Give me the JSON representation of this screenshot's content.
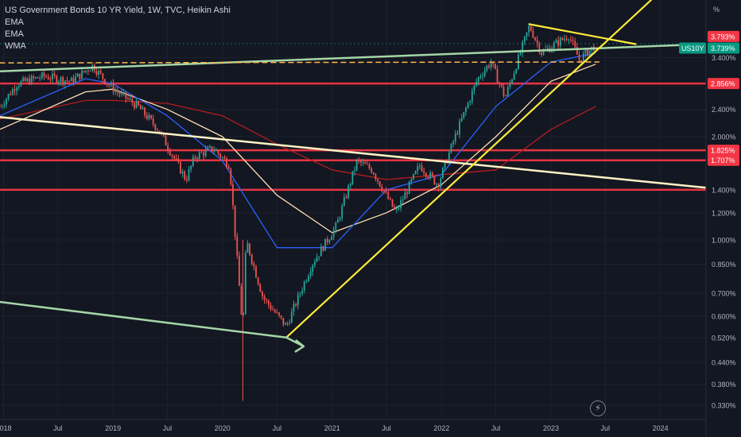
{
  "legend": {
    "title": "US Government Bonds 10 YR Yield, 1W, TVC, Heikin Ashi",
    "line1": "EMA",
    "line2": "EMA",
    "line3": "WMA"
  },
  "icons": {
    "flash": "lightning-icon"
  },
  "chart_data": {
    "type": "candlestick",
    "scale": "log",
    "unit_label": "%",
    "ylim": [
      0.3,
      5.0
    ],
    "xlim": [
      "2017-12-20",
      "2024-06-01"
    ],
    "y_ticks": [
      "3.400%",
      "2.400%",
      "2.000%",
      "1.400%",
      "1.200%",
      "1.000%",
      "0.850%",
      "0.700%",
      "0.600%",
      "0.520%",
      "0.440%",
      "0.380%",
      "0.330%"
    ],
    "y_tick_values": [
      3.4,
      2.4,
      2.0,
      1.4,
      1.2,
      1.0,
      0.85,
      0.7,
      0.6,
      0.52,
      0.44,
      0.38,
      0.33
    ],
    "x_ticks": [
      {
        "label": "2018",
        "date": "2018-01-01"
      },
      {
        "label": "Jul",
        "date": "2018-07-01"
      },
      {
        "label": "2019",
        "date": "2019-01-01"
      },
      {
        "label": "Jul",
        "date": "2019-07-01"
      },
      {
        "label": "2020",
        "date": "2020-01-01"
      },
      {
        "label": "Jul",
        "date": "2020-07-01"
      },
      {
        "label": "2021",
        "date": "2021-01-01"
      },
      {
        "label": "Jul",
        "date": "2021-07-01"
      },
      {
        "label": "2022",
        "date": "2022-01-01"
      },
      {
        "label": "Jul",
        "date": "2022-07-01"
      },
      {
        "label": "2023",
        "date": "2023-01-01"
      },
      {
        "label": "Jul",
        "date": "2023-07-01"
      },
      {
        "label": "2024",
        "date": "2024-01-01"
      }
    ],
    "price_path": [
      [
        "2017-12-20",
        2.45
      ],
      [
        "2018-02-15",
        2.85
      ],
      [
        "2018-05-15",
        3.0
      ],
      [
        "2018-08-15",
        2.9
      ],
      [
        "2018-10-25",
        3.22
      ],
      [
        "2018-12-15",
        2.85
      ],
      [
        "2019-01-15",
        2.7
      ],
      [
        "2019-03-25",
        2.45
      ],
      [
        "2019-06-01",
        2.1
      ],
      [
        "2019-09-01",
        1.5
      ],
      [
        "2019-10-01",
        1.75
      ],
      [
        "2019-12-01",
        1.85
      ],
      [
        "2020-01-25",
        1.65
      ],
      [
        "2020-03-09",
        0.54
      ],
      [
        "2020-03-20",
        1.0
      ],
      [
        "2020-05-15",
        0.68
      ],
      [
        "2020-08-01",
        0.56
      ],
      [
        "2020-10-25",
        0.85
      ],
      [
        "2021-01-15",
        1.1
      ],
      [
        "2021-03-25",
        1.7
      ],
      [
        "2021-05-15",
        1.6
      ],
      [
        "2021-08-01",
        1.2
      ],
      [
        "2021-10-20",
        1.65
      ],
      [
        "2021-12-20",
        1.45
      ],
      [
        "2022-02-15",
        2.0
      ],
      [
        "2022-05-01",
        2.95
      ],
      [
        "2022-06-14",
        3.3
      ],
      [
        "2022-08-01",
        2.6
      ],
      [
        "2022-10-21",
        4.2
      ],
      [
        "2022-12-01",
        3.5
      ],
      [
        "2023-03-01",
        3.95
      ],
      [
        "2023-04-05",
        3.35
      ],
      [
        "2023-05-30",
        3.7
      ]
    ],
    "indicators": {
      "ema_fast": [
        [
          "2017-12-20",
          2.3
        ],
        [
          "2018-10-01",
          2.95
        ],
        [
          "2019-01-01",
          2.85
        ],
        [
          "2019-07-01",
          2.3
        ],
        [
          "2020-01-01",
          1.7
        ],
        [
          "2020-07-01",
          0.95
        ],
        [
          "2021-01-01",
          0.95
        ],
        [
          "2021-07-01",
          1.4
        ],
        [
          "2022-01-01",
          1.55
        ],
        [
          "2022-07-01",
          2.45
        ],
        [
          "2023-01-01",
          3.3
        ],
        [
          "2023-05-30",
          3.5
        ]
      ],
      "ema_slow": [
        [
          "2017-12-20",
          2.1
        ],
        [
          "2018-10-01",
          2.7
        ],
        [
          "2019-01-01",
          2.75
        ],
        [
          "2019-07-01",
          2.4
        ],
        [
          "2020-01-01",
          2.0
        ],
        [
          "2020-07-01",
          1.35
        ],
        [
          "2021-01-01",
          1.05
        ],
        [
          "2021-07-01",
          1.2
        ],
        [
          "2022-01-01",
          1.45
        ],
        [
          "2022-07-01",
          2.0
        ],
        [
          "2023-01-01",
          2.9
        ],
        [
          "2023-05-30",
          3.25
        ]
      ],
      "wma": [
        [
          "2017-12-20",
          2.25
        ],
        [
          "2018-10-01",
          2.55
        ],
        [
          "2019-01-01",
          2.55
        ],
        [
          "2019-07-01",
          2.5
        ],
        [
          "2020-01-01",
          2.3
        ],
        [
          "2020-07-01",
          1.9
        ],
        [
          "2021-01-01",
          1.6
        ],
        [
          "2021-07-01",
          1.5
        ],
        [
          "2022-01-01",
          1.55
        ],
        [
          "2022-07-01",
          1.6
        ],
        [
          "2023-01-01",
          2.1
        ],
        [
          "2023-05-30",
          2.45
        ]
      ]
    },
    "horizontal_lines": [
      2.856,
      1.825,
      1.707,
      1.4
    ],
    "current_price": 3.739,
    "current_level": 3.793,
    "price_labels": [
      {
        "text": "3.793%",
        "color": "#f23645"
      },
      {
        "text": "3.739%",
        "color": "#089981",
        "tag": "US10Y"
      },
      {
        "text": "2.856%",
        "color": "#f23645"
      },
      {
        "text": "1.825%",
        "color": "#f23645"
      },
      {
        "text": "1.707%",
        "color": "#f23645"
      }
    ]
  },
  "colors": {
    "up": "#26a69a",
    "down": "#ef5350",
    "ema_fast": "#2962ff",
    "ema_slow": "#ffe0b2",
    "wma": "#b71c1c",
    "support": "#f23645",
    "trend_yellow": "#ffeb3b",
    "trend_cream": "#fff3c4",
    "trend_green": "#a5d6a7"
  }
}
